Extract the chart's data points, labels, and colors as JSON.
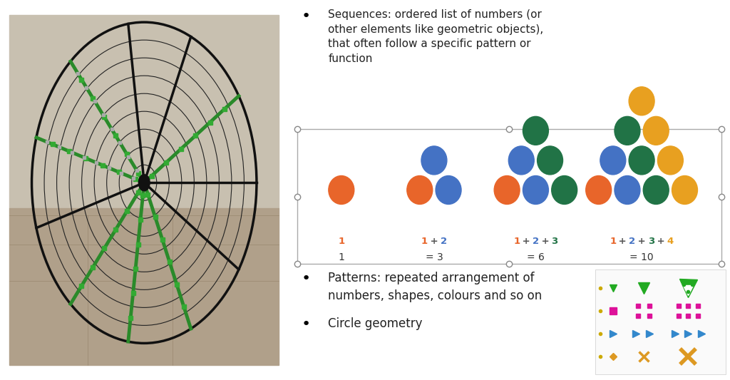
{
  "bg_color": "#ffffff",
  "photo_bg": "#b8a898",
  "photo_floor": "#c8b89a",
  "photo_wall": "#d8cfc0",
  "orange": "#E8652A",
  "blue": "#4472C4",
  "green": "#217346",
  "gold": "#E8A020",
  "green_icon": "#22aa22",
  "pink_icon": "#DD1199",
  "teal_icon": "#3388CC",
  "orange_icon": "#DD9922",
  "triangle_groups": [
    {
      "label_eq": "1",
      "formula_parts": [
        [
          "1",
          "#E8652A"
        ]
      ],
      "circles": [
        {
          "col": 0,
          "row": 0,
          "color": "#E8652A"
        }
      ]
    },
    {
      "label_eq": "= 3",
      "formula_parts": [
        [
          "1",
          "#E8652A"
        ],
        [
          " + ",
          "#555555"
        ],
        [
          "2",
          "#4472C4"
        ]
      ],
      "circles": [
        {
          "col": -0.5,
          "row": 0,
          "color": "#E8652A"
        },
        {
          "col": 0.5,
          "row": 0,
          "color": "#4472C4"
        },
        {
          "col": 0.0,
          "row": 1,
          "color": "#4472C4"
        }
      ]
    },
    {
      "label_eq": "= 6",
      "formula_parts": [
        [
          "1",
          "#E8652A"
        ],
        [
          " + ",
          "#555555"
        ],
        [
          "2",
          "#4472C4"
        ],
        [
          " + ",
          "#555555"
        ],
        [
          "3",
          "#217346"
        ]
      ],
      "circles": [
        {
          "col": -1.0,
          "row": 0,
          "color": "#E8652A"
        },
        {
          "col": 0.0,
          "row": 0,
          "color": "#4472C4"
        },
        {
          "col": 1.0,
          "row": 0,
          "color": "#217346"
        },
        {
          "col": -0.5,
          "row": 1,
          "color": "#4472C4"
        },
        {
          "col": 0.5,
          "row": 1,
          "color": "#217346"
        },
        {
          "col": 0.0,
          "row": 2,
          "color": "#217346"
        }
      ]
    },
    {
      "label_eq": "= 10",
      "formula_parts": [
        [
          "1",
          "#E8652A"
        ],
        [
          " + ",
          "#555555"
        ],
        [
          "2",
          "#4472C4"
        ],
        [
          " + ",
          "#555555"
        ],
        [
          "3",
          "#217346"
        ],
        [
          " + ",
          "#555555"
        ],
        [
          "4",
          "#E8A020"
        ]
      ],
      "circles": [
        {
          "col": -1.5,
          "row": 0,
          "color": "#E8652A"
        },
        {
          "col": -0.5,
          "row": 0,
          "color": "#4472C4"
        },
        {
          "col": 0.5,
          "row": 0,
          "color": "#217346"
        },
        {
          "col": 1.5,
          "row": 0,
          "color": "#E8A020"
        },
        {
          "col": -1.0,
          "row": 1,
          "color": "#4472C4"
        },
        {
          "col": 0.0,
          "row": 1,
          "color": "#217346"
        },
        {
          "col": 1.0,
          "row": 1,
          "color": "#E8A020"
        },
        {
          "col": -0.5,
          "row": 2,
          "color": "#217346"
        },
        {
          "col": 0.5,
          "row": 2,
          "color": "#E8A020"
        },
        {
          "col": 0.0,
          "row": 3,
          "color": "#E8A020"
        }
      ]
    }
  ]
}
